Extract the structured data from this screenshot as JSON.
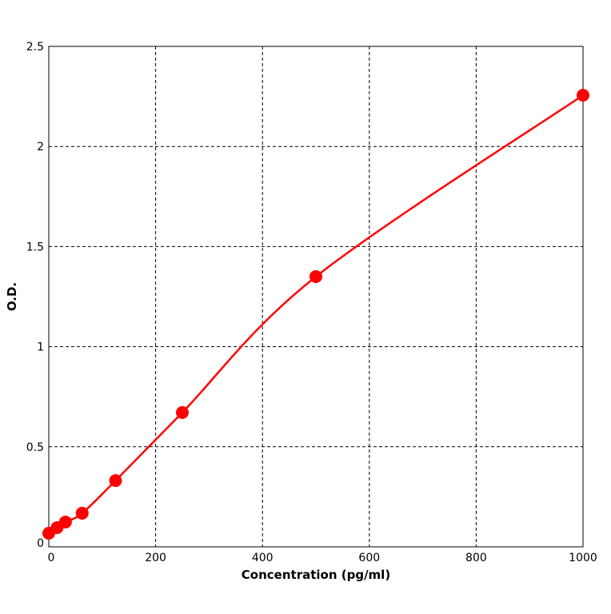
{
  "chart_data": {
    "type": "line",
    "xlabel": "Concentration (pg/ml)",
    "ylabel": "O.D.",
    "x": [
      0,
      15.6,
      31.25,
      62.5,
      125,
      250,
      500,
      1000
    ],
    "series": [
      {
        "color": "#ff0000",
        "values": [
          0.068,
          0.096,
          0.124,
          0.168,
          0.331,
          0.671,
          1.35,
          2.256
        ]
      }
    ],
    "xlim": [
      0,
      1000
    ],
    "xticks": [
      0,
      200,
      400,
      600,
      800,
      1000
    ],
    "ylim": [
      0,
      2.5
    ],
    "yticks": [
      0,
      0.5,
      1,
      1.5,
      2,
      2.5
    ],
    "grid": true
  }
}
